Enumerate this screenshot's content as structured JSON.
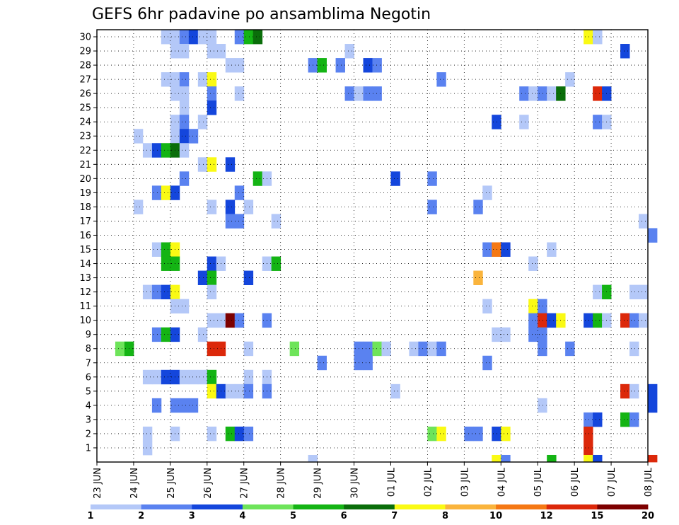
{
  "chart_data": {
    "type": "heatmap",
    "title": "GEFS 6hr padavine po ansamblima Negotin",
    "xlabel": "",
    "ylabel": "",
    "x_tick_labels": [
      "23 JUN",
      "24 JUN",
      "25 JUN",
      "26 JUN",
      "27 JUN",
      "28 JUN",
      "29 JUN",
      "30 JUN",
      "01 JUL",
      "02 JUL",
      "03 JUL",
      "04 JUL",
      "05 JUL",
      "06 JUL",
      "07 JUL",
      "08 JUL"
    ],
    "y_tick_labels": [
      "1",
      "2",
      "3",
      "4",
      "5",
      "6",
      "7",
      "8",
      "9",
      "10",
      "11",
      "12",
      "13",
      "14",
      "15",
      "16",
      "17",
      "18",
      "19",
      "20",
      "21",
      "22",
      "23",
      "24",
      "25",
      "26",
      "27",
      "28",
      "29",
      "30"
    ],
    "x_range_days": [
      0,
      15
    ],
    "y_range_members": [
      0,
      30
    ],
    "time_step_days": 0.25,
    "grid": true,
    "colorbar": {
      "levels": [
        "1",
        "2",
        "3",
        "4",
        "5",
        "6",
        "7",
        "8",
        "10",
        "12",
        "15",
        "20",
        ""
      ],
      "colors": [
        "#b4c8f8",
        "#5a82f0",
        "#1446dc",
        "#6ee45a",
        "#14b414",
        "#0a6e0a",
        "#fafa14",
        "#fab43c",
        "#f57814",
        "#dc280a",
        "#7d0000"
      ]
    },
    "cells": [
      [
        30,
        1.75,
        1
      ],
      [
        30,
        2,
        1
      ],
      [
        30,
        2.25,
        2
      ],
      [
        30,
        2.5,
        3
      ],
      [
        30,
        2.75,
        1
      ],
      [
        30,
        3,
        1
      ],
      [
        30,
        3.75,
        2
      ],
      [
        30,
        4,
        5
      ],
      [
        30,
        4.25,
        6
      ],
      [
        30,
        13.25,
        7
      ],
      [
        30,
        13.5,
        1
      ],
      [
        29,
        2,
        1
      ],
      [
        29,
        2.25,
        1
      ],
      [
        29,
        3,
        1
      ],
      [
        29,
        3.25,
        1
      ],
      [
        29,
        6.75,
        1
      ],
      [
        29,
        14.25,
        3
      ],
      [
        28,
        3.5,
        1
      ],
      [
        28,
        3.75,
        1
      ],
      [
        28,
        5.75,
        2
      ],
      [
        28,
        6,
        5
      ],
      [
        28,
        6.5,
        2
      ],
      [
        28,
        7.25,
        3
      ],
      [
        28,
        7.5,
        2
      ],
      [
        27,
        1.75,
        1
      ],
      [
        27,
        2,
        1
      ],
      [
        27,
        2.25,
        2
      ],
      [
        27,
        2.75,
        1
      ],
      [
        27,
        3,
        7
      ],
      [
        27,
        9.25,
        2
      ],
      [
        27,
        12.75,
        1
      ],
      [
        26,
        2,
        1
      ],
      [
        26,
        2.25,
        1
      ],
      [
        26,
        3,
        2
      ],
      [
        26,
        3.75,
        1
      ],
      [
        26,
        6.75,
        2
      ],
      [
        26,
        7,
        1
      ],
      [
        26,
        7.25,
        2
      ],
      [
        26,
        7.5,
        2
      ],
      [
        26,
        11.5,
        2
      ],
      [
        26,
        11.75,
        1
      ],
      [
        26,
        12,
        2
      ],
      [
        26,
        12.25,
        1
      ],
      [
        26,
        12.5,
        6
      ],
      [
        26,
        13.5,
        10
      ],
      [
        26,
        13.75,
        3
      ],
      [
        25,
        2.25,
        1
      ],
      [
        25,
        3,
        3
      ],
      [
        24,
        2,
        1
      ],
      [
        24,
        2.25,
        2
      ],
      [
        24,
        2.75,
        1
      ],
      [
        24,
        10.75,
        3
      ],
      [
        24,
        11.5,
        1
      ],
      [
        24,
        13.5,
        2
      ],
      [
        24,
        13.75,
        1
      ],
      [
        23,
        1,
        1
      ],
      [
        23,
        2,
        1
      ],
      [
        23,
        2.25,
        3
      ],
      [
        23,
        2.5,
        2
      ],
      [
        22,
        1.25,
        1
      ],
      [
        22,
        1.5,
        3
      ],
      [
        22,
        1.75,
        5
      ],
      [
        22,
        2,
        6
      ],
      [
        22,
        2.25,
        1
      ],
      [
        21,
        2.75,
        1
      ],
      [
        21,
        3,
        7
      ],
      [
        21,
        3.5,
        3
      ],
      [
        20,
        2.25,
        2
      ],
      [
        20,
        4.25,
        5
      ],
      [
        20,
        4.5,
        1
      ],
      [
        20,
        8,
        3
      ],
      [
        20,
        9,
        2
      ],
      [
        19,
        1.5,
        2
      ],
      [
        19,
        1.75,
        7
      ],
      [
        19,
        2,
        3
      ],
      [
        19,
        3.75,
        2
      ],
      [
        19,
        10.5,
        1
      ],
      [
        18,
        1,
        1
      ],
      [
        18,
        3,
        1
      ],
      [
        18,
        3.5,
        3
      ],
      [
        18,
        4,
        1
      ],
      [
        18,
        9,
        2
      ],
      [
        18,
        10.25,
        2
      ],
      [
        17,
        3.5,
        2
      ],
      [
        17,
        3.75,
        2
      ],
      [
        17,
        4.75,
        1
      ],
      [
        17,
        14.75,
        1
      ],
      [
        16,
        15,
        2
      ],
      [
        15,
        1.5,
        1
      ],
      [
        15,
        1.75,
        5
      ],
      [
        15,
        2,
        7
      ],
      [
        15,
        10.5,
        2
      ],
      [
        15,
        10.75,
        9
      ],
      [
        15,
        11,
        3
      ],
      [
        15,
        12.25,
        1
      ],
      [
        14,
        1.75,
        5
      ],
      [
        14,
        2,
        5
      ],
      [
        14,
        3,
        3
      ],
      [
        14,
        3.25,
        1
      ],
      [
        14,
        4.5,
        1
      ],
      [
        14,
        4.75,
        5
      ],
      [
        14,
        11.75,
        1
      ],
      [
        13,
        2.75,
        3
      ],
      [
        13,
        3,
        5
      ],
      [
        13,
        4,
        3
      ],
      [
        13,
        10.25,
        8
      ],
      [
        12,
        1.25,
        1
      ],
      [
        12,
        1.5,
        2
      ],
      [
        12,
        1.75,
        3
      ],
      [
        12,
        2,
        7
      ],
      [
        12,
        3,
        1
      ],
      [
        12,
        13.5,
        1
      ],
      [
        12,
        13.75,
        5
      ],
      [
        12,
        14.5,
        1
      ],
      [
        12,
        14.75,
        1
      ],
      [
        11,
        2,
        1
      ],
      [
        11,
        2.25,
        1
      ],
      [
        11,
        10.5,
        1
      ],
      [
        11,
        11.75,
        7
      ],
      [
        11,
        12,
        2
      ],
      [
        10,
        3,
        1
      ],
      [
        10,
        3.25,
        1
      ],
      [
        10,
        3.5,
        11
      ],
      [
        10,
        3.75,
        2
      ],
      [
        10,
        4.5,
        2
      ],
      [
        10,
        11.75,
        2
      ],
      [
        10,
        12,
        10
      ],
      [
        10,
        12.25,
        3
      ],
      [
        10,
        12.5,
        7
      ],
      [
        10,
        13.25,
        3
      ],
      [
        10,
        13.5,
        5
      ],
      [
        10,
        13.75,
        1
      ],
      [
        10,
        14.25,
        10
      ],
      [
        10,
        14.5,
        2
      ],
      [
        10,
        14.75,
        1
      ],
      [
        9,
        1.5,
        2
      ],
      [
        9,
        1.75,
        5
      ],
      [
        9,
        2,
        3
      ],
      [
        9,
        2.75,
        1
      ],
      [
        9,
        10.75,
        1
      ],
      [
        9,
        11,
        1
      ],
      [
        9,
        11.75,
        2
      ],
      [
        9,
        12,
        2
      ],
      [
        8,
        0.5,
        4
      ],
      [
        8,
        0.75,
        5
      ],
      [
        8,
        3,
        10
      ],
      [
        8,
        3.25,
        10
      ],
      [
        8,
        4,
        1
      ],
      [
        8,
        5.25,
        4
      ],
      [
        8,
        7,
        2
      ],
      [
        8,
        7.25,
        2
      ],
      [
        8,
        7.5,
        4
      ],
      [
        8,
        7.75,
        1
      ],
      [
        8,
        8.5,
        1
      ],
      [
        8,
        8.75,
        2
      ],
      [
        8,
        9,
        1
      ],
      [
        8,
        9.25,
        2
      ],
      [
        8,
        12,
        2
      ],
      [
        8,
        12.75,
        2
      ],
      [
        8,
        14.5,
        1
      ],
      [
        7,
        6,
        2
      ],
      [
        7,
        7,
        2
      ],
      [
        7,
        7.25,
        2
      ],
      [
        7,
        10.5,
        2
      ],
      [
        6,
        1.25,
        1
      ],
      [
        6,
        1.5,
        1
      ],
      [
        6,
        1.75,
        3
      ],
      [
        6,
        2,
        3
      ],
      [
        6,
        2.25,
        1
      ],
      [
        6,
        2.5,
        1
      ],
      [
        6,
        2.75,
        1
      ],
      [
        6,
        3,
        5
      ],
      [
        6,
        4,
        1
      ],
      [
        6,
        4.5,
        1
      ],
      [
        5,
        3,
        7
      ],
      [
        5,
        3.25,
        3
      ],
      [
        5,
        3.5,
        1
      ],
      [
        5,
        3.75,
        1
      ],
      [
        5,
        4,
        2
      ],
      [
        5,
        4.5,
        2
      ],
      [
        5,
        8,
        1
      ],
      [
        5,
        14.25,
        10
      ],
      [
        5,
        14.5,
        1
      ],
      [
        5,
        15,
        3
      ],
      [
        4,
        1.5,
        2
      ],
      [
        4,
        2,
        2
      ],
      [
        4,
        2.25,
        2
      ],
      [
        4,
        2.5,
        2
      ],
      [
        4,
        12,
        1
      ],
      [
        4,
        15,
        3
      ],
      [
        3,
        13.25,
        2
      ],
      [
        3,
        13.5,
        3
      ],
      [
        3,
        14.25,
        5
      ],
      [
        3,
        14.5,
        2
      ],
      [
        2,
        1.25,
        1
      ],
      [
        2,
        2,
        1
      ],
      [
        2,
        3,
        1
      ],
      [
        2,
        3.5,
        5
      ],
      [
        2,
        3.75,
        3
      ],
      [
        2,
        4,
        2
      ],
      [
        2,
        9,
        4
      ],
      [
        2,
        9.25,
        7
      ],
      [
        2,
        10,
        2
      ],
      [
        2,
        10.25,
        2
      ],
      [
        2,
        10.75,
        3
      ],
      [
        2,
        11,
        7
      ],
      [
        2,
        13.25,
        10
      ],
      [
        1,
        1.25,
        1
      ],
      [
        1,
        13.25,
        10
      ],
      [
        0,
        5.75,
        1
      ],
      [
        0,
        10.75,
        7
      ],
      [
        0,
        11,
        2
      ],
      [
        0,
        12.25,
        5
      ],
      [
        0,
        13.25,
        7
      ],
      [
        0,
        13.5,
        3
      ],
      [
        0,
        15,
        10
      ]
    ]
  }
}
